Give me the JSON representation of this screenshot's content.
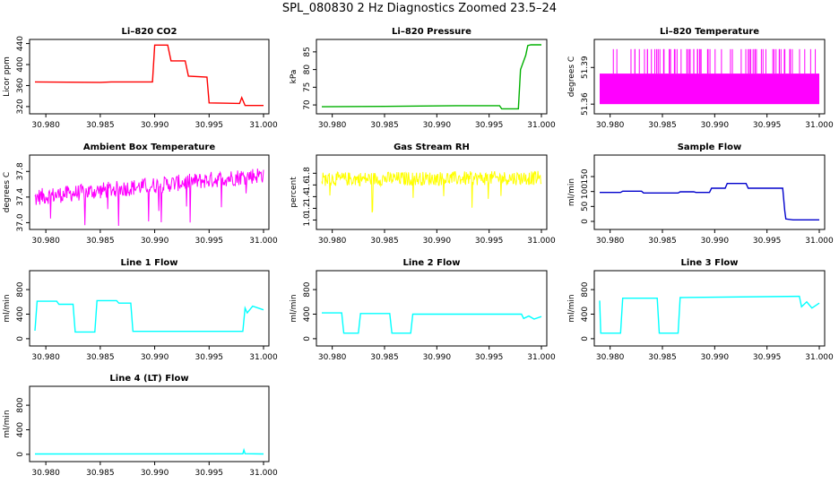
{
  "page": {
    "title": "SPL_080830  2 Hz Diagnostics Zoomed 23.5–24"
  },
  "chart_data": [
    {
      "type": "line",
      "title": "Li–820 CO2",
      "ylabel": "Licor ppm",
      "color": "#ff0000",
      "xlim": [
        30.979,
        31.0
      ],
      "ylim": [
        313,
        441
      ],
      "xticks": [
        "30.980",
        "30.985",
        "30.990",
        "30.995",
        "31.000"
      ],
      "yticks": [
        "320",
        "360",
        "400",
        "440"
      ],
      "x": [
        30.979,
        30.985,
        30.986,
        30.9898,
        30.99,
        30.9912,
        30.9915,
        30.9928,
        30.9931,
        30.9948,
        30.995,
        30.9978,
        30.998,
        30.9983,
        31.0
      ],
      "y": [
        367,
        366,
        367,
        367,
        437,
        437,
        407,
        407,
        378,
        376,
        327,
        326,
        337,
        322,
        322
      ]
    },
    {
      "type": "line",
      "title": "Li–820 Pressure",
      "ylabel": "kPa",
      "color": "#00b000",
      "xlim": [
        30.979,
        31.0
      ],
      "ylim": [
        68.5,
        87.5
      ],
      "xticks": [
        "30.980",
        "30.985",
        "30.990",
        "30.995",
        "31.000"
      ],
      "yticks": [
        "70",
        "75",
        "80",
        "85"
      ],
      "x": [
        30.979,
        30.985,
        30.992,
        30.996,
        30.9962,
        30.9978,
        30.998,
        30.9985,
        30.9987,
        30.999,
        31.0
      ],
      "y": [
        69.5,
        69.6,
        69.8,
        69.8,
        68.9,
        68.9,
        80,
        84,
        86.8,
        87,
        87
      ]
    },
    {
      "type": "area",
      "title": "Li–820 Temperature",
      "ylabel": "degrees C",
      "color": "#ff00ff",
      "xlim": [
        30.979,
        31.0
      ],
      "ylim": [
        51.355,
        51.41
      ],
      "xticks": [
        "30.980",
        "30.985",
        "30.990",
        "30.995",
        "31.000"
      ],
      "yticks": [
        "51.36",
        "51.39"
      ],
      "band": [
        51.36,
        51.385
      ],
      "spike_top": 51.405
    },
    {
      "type": "line",
      "title": "Ambient Box Temperature",
      "ylabel": "degrees C",
      "color": "#ff00ff",
      "xlim": [
        30.979,
        31.0
      ],
      "ylim": [
        36.95,
        38.0
      ],
      "xticks": [
        "30.980",
        "30.985",
        "30.990",
        "30.995",
        "31.000"
      ],
      "yticks": [
        "37.0",
        "37.4",
        "37.8"
      ],
      "trend": [
        [
          30.979,
          37.4
        ],
        [
          31.0,
          37.75
        ]
      ],
      "noise": 0.13
    },
    {
      "type": "line",
      "title": "Gas Stream RH",
      "ylabel": "percent",
      "color": "#ffff00",
      "xlim": [
        30.979,
        31.0
      ],
      "ylim": [
        0.9,
        2.05
      ],
      "xticks": [
        "30.980",
        "30.985",
        "30.990",
        "30.995",
        "31.000"
      ],
      "yticks": [
        "1.0",
        "1.2",
        "1.4",
        "1.6",
        "1.8"
      ],
      "trend": [
        [
          30.979,
          1.7
        ],
        [
          31.0,
          1.72
        ]
      ],
      "noise": 0.12
    },
    {
      "type": "line",
      "title": "Sample Flow",
      "ylabel": "ml/min",
      "color": "#0000cc",
      "xlim": [
        30.979,
        31.0
      ],
      "ylim": [
        -15,
        210
      ],
      "xticks": [
        "30.980",
        "30.985",
        "30.990",
        "30.995",
        "31.000"
      ],
      "yticks": [
        "0",
        "50",
        "100",
        "150"
      ],
      "x": [
        30.979,
        30.981,
        30.9812,
        30.983,
        30.9832,
        30.9865,
        30.9867,
        30.988,
        30.9882,
        30.9895,
        30.9897,
        30.991,
        30.9912,
        30.993,
        30.9932,
        30.9965,
        30.9967,
        30.9968,
        30.9975,
        31.0
      ],
      "y": [
        97,
        97,
        101,
        101,
        95,
        95,
        99,
        99,
        97,
        97,
        111,
        111,
        127,
        127,
        111,
        111,
        35,
        8,
        5,
        5
      ]
    },
    {
      "type": "line",
      "title": "Line 1 Flow",
      "ylabel": "ml/min",
      "color": "#00ffff",
      "xlim": [
        30.979,
        31.0
      ],
      "ylim": [
        -60,
        1050
      ],
      "xticks": [
        "30.980",
        "30.985",
        "30.990",
        "30.995",
        "31.000"
      ],
      "yticks": [
        "0",
        "400",
        "800"
      ],
      "x": [
        30.979,
        30.9792,
        30.981,
        30.9812,
        30.9825,
        30.9827,
        30.9845,
        30.9847,
        30.9865,
        30.9867,
        30.9878,
        30.988,
        30.9981,
        30.9983,
        30.9985,
        30.999,
        31.0
      ],
      "y": [
        130,
        610,
        610,
        560,
        560,
        110,
        110,
        620,
        620,
        580,
        580,
        120,
        120,
        500,
        420,
        530,
        470
      ]
    },
    {
      "type": "line",
      "title": "Line 2 Flow",
      "ylabel": "ml/min",
      "color": "#00ffff",
      "xlim": [
        30.979,
        31.0
      ],
      "ylim": [
        -60,
        1050
      ],
      "xticks": [
        "30.980",
        "30.985",
        "30.990",
        "30.995",
        "31.000"
      ],
      "yticks": [
        "0",
        "400",
        "800"
      ],
      "x": [
        30.979,
        30.9809,
        30.9811,
        30.9825,
        30.9827,
        30.9855,
        30.9857,
        30.9875,
        30.9877,
        30.9981,
        30.9983,
        30.9988,
        30.9993,
        31.0
      ],
      "y": [
        420,
        420,
        90,
        90,
        410,
        410,
        90,
        90,
        400,
        400,
        330,
        370,
        320,
        360
      ]
    },
    {
      "type": "line",
      "title": "Line 3 Flow",
      "ylabel": "ml/min",
      "color": "#00ffff",
      "xlim": [
        30.979,
        31.0
      ],
      "ylim": [
        -60,
        1050
      ],
      "xticks": [
        "30.980",
        "30.985",
        "30.990",
        "30.995",
        "31.000"
      ],
      "yticks": [
        "0",
        "400",
        "800"
      ],
      "x": [
        30.979,
        30.9791,
        30.9793,
        30.981,
        30.9812,
        30.9845,
        30.9847,
        30.9865,
        30.9867,
        30.9981,
        30.9983,
        30.9988,
        30.9993,
        31.0
      ],
      "y": [
        620,
        90,
        90,
        90,
        660,
        660,
        90,
        90,
        670,
        690,
        520,
        600,
        500,
        580
      ]
    },
    {
      "type": "line",
      "title": "Line 4 (LT) Flow",
      "ylabel": "ml/min",
      "color": "#00ffff",
      "xlim": [
        30.979,
        31.0
      ],
      "ylim": [
        -60,
        1050
      ],
      "xticks": [
        "30.980",
        "30.985",
        "30.990",
        "30.995",
        "31.000"
      ],
      "yticks": [
        "0",
        "400",
        "800"
      ],
      "x": [
        30.979,
        30.9981,
        30.9982,
        30.9983,
        31.0
      ],
      "y": [
        5,
        8,
        70,
        10,
        5
      ]
    }
  ]
}
